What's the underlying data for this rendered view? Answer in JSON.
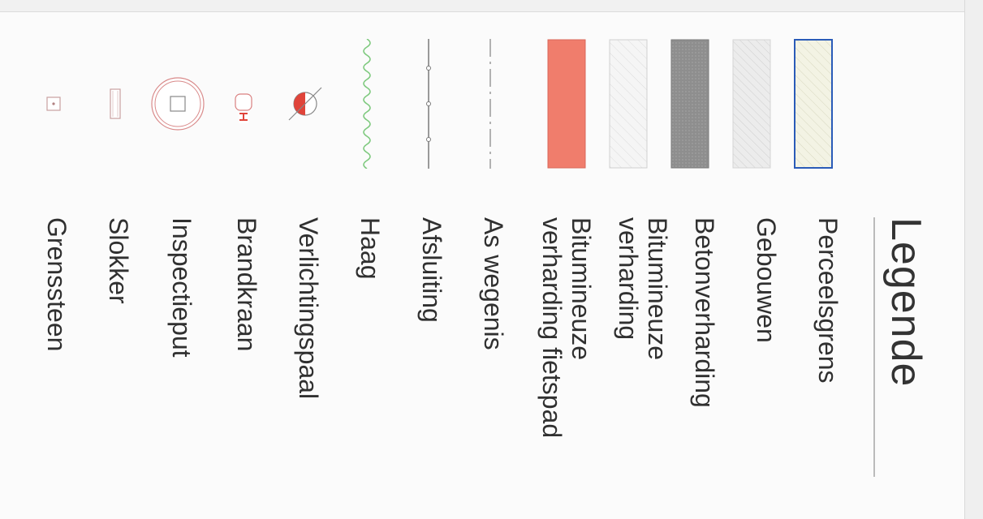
{
  "legend": {
    "title": "Legende",
    "items": [
      {
        "label_lines": [
          "Perceelsgrens"
        ],
        "icon": "parcel-boundary-swatch",
        "color": "#2a5bb8"
      },
      {
        "label_lines": [
          "Gebouwen"
        ],
        "icon": "buildings-hatch-swatch",
        "color": "#e9e9e9"
      },
      {
        "label_lines": [
          "Betonverharding"
        ],
        "icon": "concrete-paving-swatch",
        "color": "#8d8d8d"
      },
      {
        "label_lines": [
          "Bitumineuze",
          "verharding"
        ],
        "icon": "bituminous-paving-swatch",
        "color": "#f2f2f2"
      },
      {
        "label_lines": [
          "Bitumineuze",
          "verharding fietspad"
        ],
        "icon": "bike-path-swatch",
        "color": "#f07d6c"
      },
      {
        "label_lines": [
          "As wegenis"
        ],
        "icon": "road-axis-line",
        "color": "#9a9a9a"
      },
      {
        "label_lines": [
          "Afsluiting"
        ],
        "icon": "fence-line",
        "color": "#777777"
      },
      {
        "label_lines": [
          "Haag"
        ],
        "icon": "hedge-line",
        "color": "#7ec97e"
      },
      {
        "label_lines": [
          "Verlichtingspaal"
        ],
        "icon": "light-pole-symbol",
        "color": "#e0443a"
      },
      {
        "label_lines": [
          "Brandkraan"
        ],
        "icon": "hydrant-symbol",
        "color": "#e0443a"
      },
      {
        "label_lines": [
          "Inspectieput"
        ],
        "icon": "manhole-symbol",
        "color": "#d98a8a"
      },
      {
        "label_lines": [
          "Slokker"
        ],
        "icon": "gully-symbol",
        "color": "#c9a0a0"
      },
      {
        "label_lines": [
          "Grenssteen"
        ],
        "icon": "boundary-stone-symbol",
        "color": "#c9a0a0"
      }
    ]
  }
}
